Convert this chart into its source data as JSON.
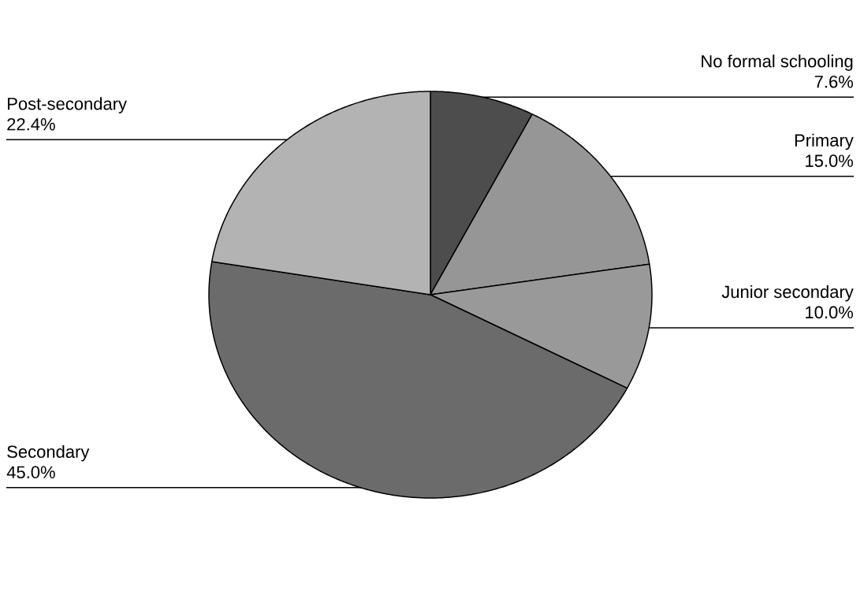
{
  "chart_data": {
    "type": "pie",
    "categories": [
      "No formal schooling",
      "Primary",
      "Junior secondary",
      "Secondary",
      "Post-secondary"
    ],
    "values": [
      7.6,
      15.0,
      10.0,
      45.0,
      22.4
    ],
    "value_labels": [
      "7.6%",
      "15.0%",
      "10.0%",
      "45.0%",
      "22.4%"
    ],
    "colors": [
      "#4d4d4d",
      "#969696",
      "#999999",
      "#6b6b6b",
      "#b3b3b3"
    ]
  }
}
